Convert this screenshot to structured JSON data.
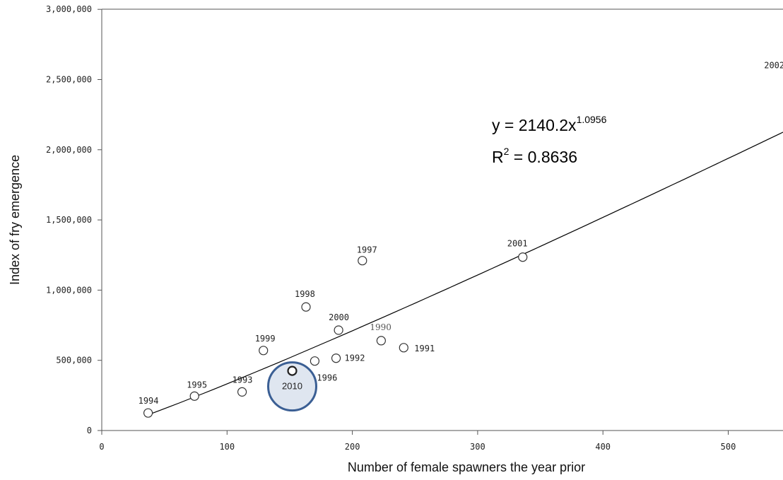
{
  "chart_data": {
    "type": "scatter",
    "xlabel": "Number of female spawners the year prior",
    "ylabel": "Index of fry emergence",
    "xlim": [
      0,
      550
    ],
    "ylim": [
      0,
      3000000
    ],
    "x_ticks": [
      0,
      100,
      200,
      300,
      400,
      500
    ],
    "x_tick_labels": [
      "0",
      "100",
      "200",
      "300",
      "400",
      "500"
    ],
    "y_ticks": [
      0,
      500000,
      1000000,
      1500000,
      2000000,
      2500000,
      3000000
    ],
    "y_tick_labels": [
      "0",
      "500,000",
      "1,000,000",
      "1,500,000",
      "2,000,000",
      "2,500,000",
      "3,000,000"
    ],
    "points": [
      {
        "label": "1994",
        "x": 37,
        "y": 125000
      },
      {
        "label": "1995",
        "x": 74,
        "y": 245000
      },
      {
        "label": "1993",
        "x": 112,
        "y": 275000
      },
      {
        "label": "1999",
        "x": 129,
        "y": 570000
      },
      {
        "label": "2010",
        "x": 152,
        "y": 425000
      },
      {
        "label": "1998",
        "x": 163,
        "y": 880000
      },
      {
        "label": "1996",
        "x": 170,
        "y": 495000
      },
      {
        "label": "1992",
        "x": 187,
        "y": 515000
      },
      {
        "label": "2000",
        "x": 189,
        "y": 715000
      },
      {
        "label": "1997",
        "x": 208,
        "y": 1210000
      },
      {
        "label": "1990",
        "x": 223,
        "y": 640000
      },
      {
        "label": "1991",
        "x": 241,
        "y": 590000
      },
      {
        "label": "2001",
        "x": 336,
        "y": 1235000
      },
      {
        "label": "2002",
        "x": 550,
        "y": 2600000
      }
    ],
    "trendline": {
      "type": "power",
      "a": 2140.2,
      "b": 1.0956
    },
    "equation": {
      "prefix": "y = 2140.2x",
      "exponent": "1.0956"
    },
    "r_squared": {
      "prefix": "R",
      "sup": "2",
      "suffix": " = 0.8636"
    },
    "highlight": {
      "label": "2010",
      "color": "#3b5f94",
      "fill": "#dfe6f0"
    },
    "grid": false,
    "legend": "none"
  }
}
